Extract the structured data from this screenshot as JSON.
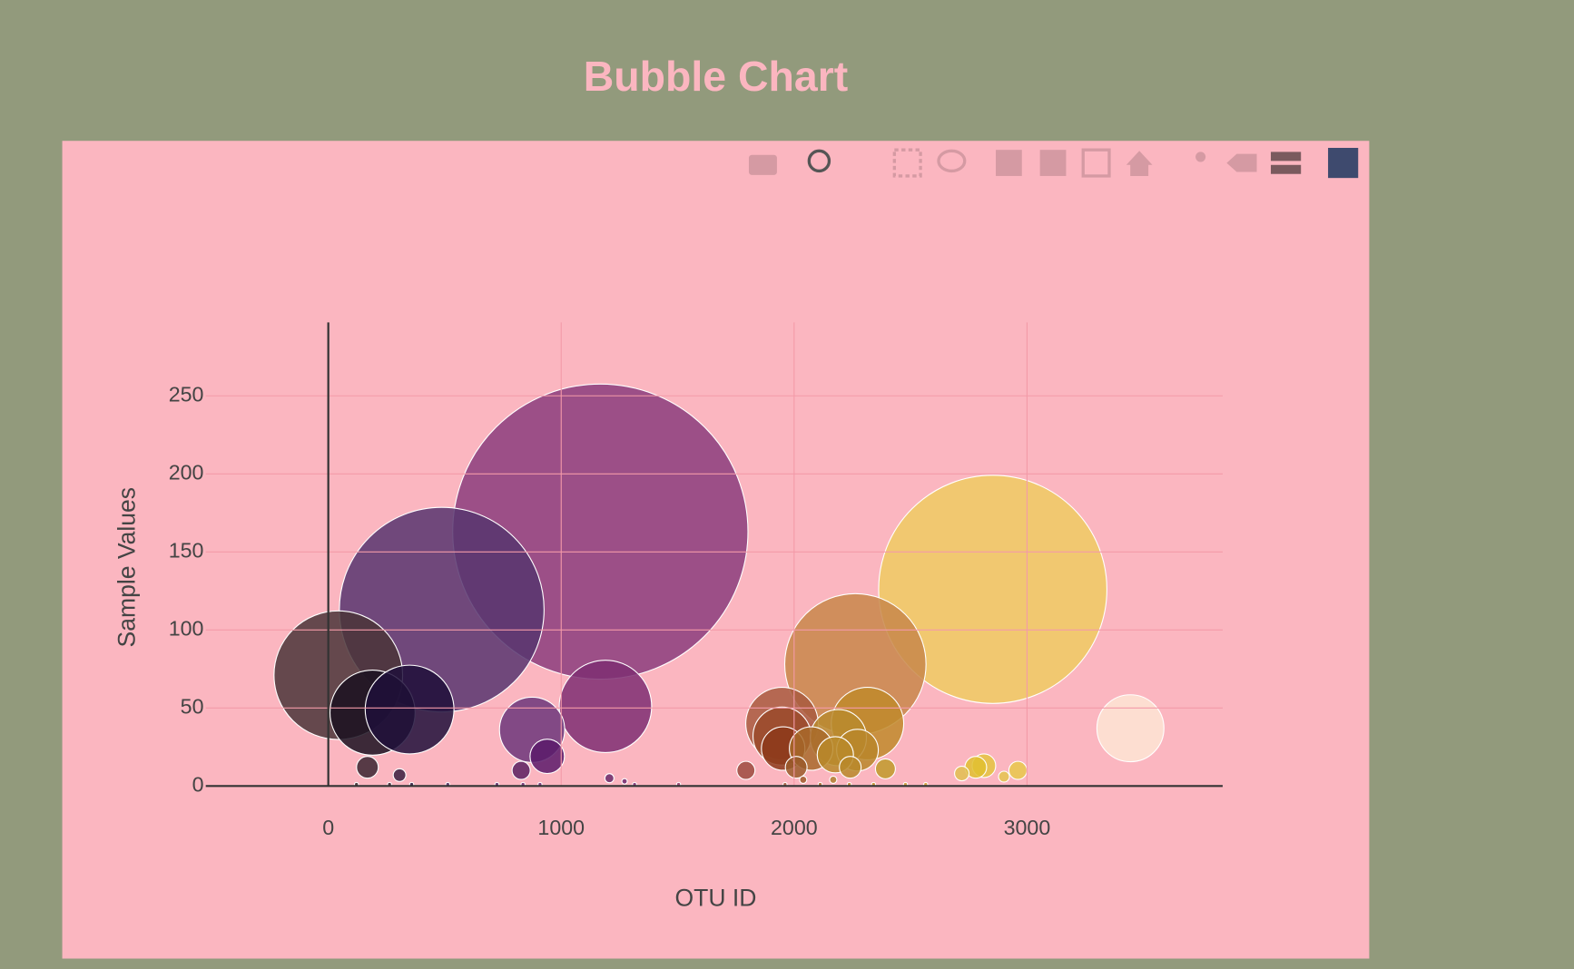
{
  "chart_data": {
    "type": "scatter",
    "title": "Bubble Chart",
    "x_label": "OTU ID",
    "y_label": "Sample Values",
    "xlim": [
      -526,
      3840
    ],
    "ylim": [
      0,
      297
    ],
    "xticks": [
      0,
      1000,
      2000,
      3000
    ],
    "yticks": [
      0,
      50,
      100,
      150,
      200,
      250
    ],
    "grid": true,
    "x": [
      1168,
      487,
      43,
      2853,
      2263,
      190,
      349,
      1190,
      875,
      1948,
      2315,
      3444,
      1948,
      2190,
      1953,
      2073,
      2272,
      940,
      2177,
      168,
      2241,
      2815,
      2780,
      2009,
      2392,
      1793,
      828,
      2961,
      2720,
      306,
      2901,
      1207,
      2039,
      2168,
      1272,
      121,
      263,
      358,
      513,
      724,
      836,
      909,
      1315,
      1504,
      1961,
      2112,
      2237,
      2341,
      2478,
      2565
    ],
    "values": [
      163,
      113,
      71,
      126,
      78,
      47,
      49,
      51,
      36,
      40,
      40,
      37,
      32,
      31,
      24,
      24,
      23,
      19,
      20,
      12,
      12,
      13,
      12,
      12,
      11,
      10,
      10,
      10,
      8,
      7,
      6,
      5,
      4,
      4,
      3,
      1,
      1,
      1,
      1,
      1,
      1,
      1,
      1,
      1,
      1,
      1,
      1,
      1,
      1,
      1
    ],
    "colors": [
      "#8b3d7c",
      "#57356e",
      "#4a3538",
      "#eecb62",
      "#c8874a",
      "#1a1020",
      "#1e0f3a",
      "#7e2e72",
      "#6c367a",
      "#a85a3e",
      "#c08a2a",
      "#fde5d4",
      "#9a4a2a",
      "#b98a2e",
      "#8c3a1a",
      "#a86a2a",
      "#b8862a",
      "#5a1a6a",
      "#b88a2a",
      "#3a2530",
      "#b8882a",
      "#e4c440",
      "#e0c030",
      "#9a5a2a",
      "#c09a2a",
      "#9c4a3e",
      "#5a2060",
      "#e8c84a",
      "#e0c050",
      "#3a2040",
      "#e4c450",
      "#6a2a6a",
      "#a05a2a",
      "#b08030",
      "#702a70",
      "#3a2a2e",
      "#3a2030",
      "#2a1a40",
      "#4a2a60",
      "#5a2a6a",
      "#6a2a70",
      "#6a2a72",
      "#7a2e72",
      "#8a3a6a",
      "#a05a3a",
      "#a86a2a",
      "#b8862a",
      "#c0902a",
      "#c89a30",
      "#d0a030"
    ]
  }
}
